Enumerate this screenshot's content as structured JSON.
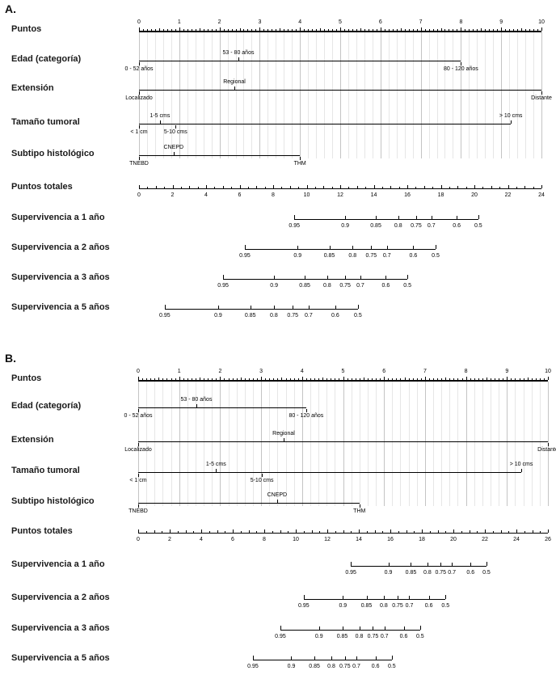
{
  "colors": {
    "background": "#ffffff",
    "axis_line": "#000000",
    "grid_minor": "#e6e6e6",
    "grid_major": "#c4c4c4",
    "label_text": "#1a1a1a"
  },
  "chart_data": [
    {
      "type": "nomogram",
      "panel_label": "A.",
      "points_axis": {
        "label": "Puntos",
        "min": 0,
        "max": 10,
        "label_step": 1,
        "minor_step": 0.1,
        "grid_step": 0.2
      },
      "predictors": [
        {
          "label": "Edad (categoría)",
          "start": 0,
          "end": 8.0,
          "ticks": [
            {
              "value": 0,
              "text": "0 - 52 años",
              "side": "below"
            },
            {
              "value": 2.47,
              "text": "53 - 80 años",
              "side": "above"
            },
            {
              "value": 8.0,
              "text": "80 - 120 años",
              "side": "below"
            }
          ]
        },
        {
          "label": "Extensión",
          "start": 0,
          "end": 10,
          "ticks": [
            {
              "value": 0,
              "text": "Localizado",
              "side": "below"
            },
            {
              "value": 2.37,
              "text": "Regional",
              "side": "above"
            },
            {
              "value": 10,
              "text": "Distante",
              "side": "below"
            }
          ]
        },
        {
          "label": "Tamaño tumoral",
          "start": 0,
          "end": 9.24,
          "ticks": [
            {
              "value": 0,
              "text": "< 1 cm",
              "side": "below"
            },
            {
              "value": 0.52,
              "text": "1-5 cms",
              "side": "above"
            },
            {
              "value": 0.91,
              "text": "5-10 cms",
              "side": "below"
            },
            {
              "value": 9.24,
              "text": "> 10 cms",
              "side": "above"
            }
          ]
        },
        {
          "label": "Subtipo histológico",
          "start": 0,
          "end": 4.0,
          "ticks": [
            {
              "value": 0,
              "text": "TNEBD",
              "side": "below"
            },
            {
              "value": 0.86,
              "text": "CNEPD",
              "side": "above"
            },
            {
              "value": 4.0,
              "text": "THM",
              "side": "below"
            }
          ]
        }
      ],
      "total_points_axis": {
        "label": "Puntos totales",
        "min": 0,
        "max": 24,
        "label_step": 2
      },
      "survival_axes": [
        {
          "label": "Supervivencia a 1 año",
          "scale": "cloglog",
          "start_units": 3.86,
          "end_units": 8.43,
          "tick_labels": [
            "0.95",
            "0.9",
            "0.85",
            "0.8",
            "0.75",
            "0.7",
            "0.6",
            "0.5"
          ]
        },
        {
          "label": "Supervivencia a 2 años",
          "scale": "cloglog",
          "start_units": 2.63,
          "end_units": 7.37,
          "tick_labels": [
            "0.95",
            "0.9",
            "0.85",
            "0.8",
            "0.75",
            "0.7",
            "0.6",
            "0.5"
          ]
        },
        {
          "label": "Supervivencia a 3 años",
          "scale": "cloglog",
          "start_units": 2.09,
          "end_units": 6.67,
          "tick_labels": [
            "0.95",
            "0.9",
            "0.85",
            "0.8",
            "0.75",
            "0.7",
            "0.6",
            "0.5"
          ]
        },
        {
          "label": "Supervivencia a 5 años",
          "scale": "cloglog",
          "start_units": 0.64,
          "end_units": 5.44,
          "tick_labels": [
            "0.95",
            "0.9",
            "0.85",
            "0.8",
            "0.75",
            "0.7",
            "0.6",
            "0.5"
          ]
        }
      ]
    },
    {
      "type": "nomogram",
      "panel_label": "B.",
      "points_axis": {
        "label": "Puntos",
        "min": 0,
        "max": 10,
        "label_step": 1,
        "minor_step": 0.1,
        "grid_step": 0.2
      },
      "predictors": [
        {
          "label": "Edad (categoría)",
          "start": 0,
          "end": 4.1,
          "ticks": [
            {
              "value": 0,
              "text": "0 - 52 años",
              "side": "below"
            },
            {
              "value": 1.42,
              "text": "53 - 80 años",
              "side": "above"
            },
            {
              "value": 4.1,
              "text": "80 - 120 años",
              "side": "below"
            }
          ]
        },
        {
          "label": "Extensión",
          "start": 0,
          "end": 10,
          "ticks": [
            {
              "value": 0,
              "text": "Localizado",
              "side": "below"
            },
            {
              "value": 3.55,
              "text": "Regional",
              "side": "above"
            },
            {
              "value": 10,
              "text": "Distante",
              "side": "below"
            }
          ]
        },
        {
          "label": "Tamaño tumoral",
          "start": 0,
          "end": 9.35,
          "ticks": [
            {
              "value": 0,
              "text": "< 1 cm",
              "side": "below"
            },
            {
              "value": 1.9,
              "text": "1-5 cms",
              "side": "above"
            },
            {
              "value": 3.02,
              "text": "5-10 cms",
              "side": "below"
            },
            {
              "value": 9.35,
              "text": "> 10 cms",
              "side": "above"
            }
          ]
        },
        {
          "label": "Subtipo histológico",
          "start": 0,
          "end": 5.4,
          "ticks": [
            {
              "value": 0,
              "text": "TNEBD",
              "side": "below"
            },
            {
              "value": 3.39,
              "text": "CNEPD",
              "side": "above"
            },
            {
              "value": 5.4,
              "text": "THM",
              "side": "below"
            }
          ]
        }
      ],
      "total_points_axis": {
        "label": "Puntos totales",
        "min": 0,
        "max": 26,
        "label_step": 2
      },
      "survival_axes": [
        {
          "label": "Supervivencia a 1 año",
          "scale": "cloglog",
          "start_units": 5.19,
          "end_units": 8.5,
          "tick_labels": [
            "0.95",
            "0.9",
            "0.85",
            "0.8",
            "0.75",
            "0.7",
            "0.6",
            "0.5"
          ]
        },
        {
          "label": "Supervivencia a 2 años",
          "scale": "cloglog",
          "start_units": 4.04,
          "end_units": 7.5,
          "tick_labels": [
            "0.95",
            "0.9",
            "0.85",
            "0.8",
            "0.75",
            "0.7",
            "0.6",
            "0.5"
          ]
        },
        {
          "label": "Supervivencia a 3 años",
          "scale": "cloglog",
          "start_units": 3.47,
          "end_units": 6.88,
          "tick_labels": [
            "0.95",
            "0.9",
            "0.85",
            "0.8",
            "0.75",
            "0.7",
            "0.6",
            "0.5"
          ]
        },
        {
          "label": "Supervivencia a 5 años",
          "scale": "cloglog",
          "start_units": 2.8,
          "end_units": 6.19,
          "tick_labels": [
            "0.95",
            "0.9",
            "0.85",
            "0.8",
            "0.75",
            "0.7",
            "0.6",
            "0.5"
          ]
        }
      ]
    }
  ]
}
